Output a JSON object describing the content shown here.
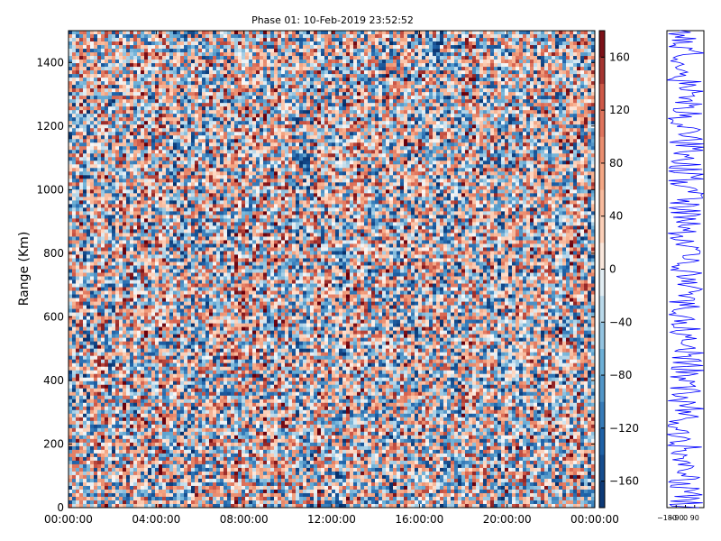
{
  "chart_data": [
    {
      "type": "heatmap",
      "title": "Phase 01: 10-Feb-2019 23:52:52",
      "ylabel": "Range (Km)",
      "x_ticks": [
        "00:00:00",
        "04:00:00",
        "08:00:00",
        "12:00:00",
        "16:00:00",
        "20:00:00",
        "00:00:00"
      ],
      "y_ticks": [
        "0",
        "200",
        "400",
        "600",
        "800",
        "1000",
        "1200",
        "1400"
      ],
      "ylim": [
        0,
        1500
      ],
      "colormap": "RdBu_r",
      "colorbar": {
        "range": [
          -180,
          180
        ],
        "ticks": [
          "−160",
          "−120",
          "−80",
          "−40",
          "0",
          "40",
          "80",
          "120",
          "160"
        ],
        "tick_values": [
          -160,
          -120,
          -80,
          -40,
          0,
          40,
          80,
          120,
          160
        ]
      },
      "grid": false
    },
    {
      "type": "line",
      "x_ticks": [
        "−180",
        "−90",
        "0",
        "90"
      ],
      "xlim": [
        -180,
        180
      ],
      "ylim": [
        0,
        1500
      ],
      "series_color": "#0000ff"
    }
  ],
  "colors": {
    "low": "#08306b",
    "mid_low": "#6aaed6",
    "neutral": "#f7f7f7",
    "mid_high": "#f4a582",
    "high": "#67000d",
    "profile_line": "#0000ff"
  }
}
